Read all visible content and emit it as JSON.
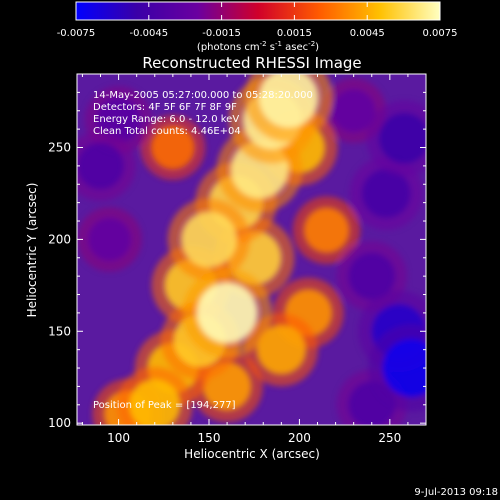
{
  "chart_data": {
    "type": "heatmap",
    "title": "Reconstructed RHESSI Image",
    "xlabel": "Heliocentric X (arcsec)",
    "ylabel": "Heliocentric Y (arcsec)",
    "xlim": [
      77,
      270
    ],
    "ylim": [
      99,
      290
    ],
    "x_ticks": [
      100,
      150,
      200,
      250
    ],
    "y_ticks": [
      100,
      150,
      200,
      250
    ],
    "annotations": [
      "14-May-2005 05:27:00.000 to 05:28:20.000",
      "Detectors: 4F 5F 6F 7F 8F 9F",
      "Energy Range: 6.0 - 12.0 keV",
      "Clean    Total counts: 4.46E+04"
    ],
    "peak_label": "Position of Peak = [194,277]",
    "colorbar": {
      "range": [
        -0.0075,
        0.0075
      ],
      "ticks": [
        "-0.0075",
        "-0.0045",
        "-0.0015",
        "0.0015",
        "0.0045",
        "0.0075"
      ],
      "unit_text": "(photons cm",
      "unit_exp1": "-2",
      "unit_mid": " s",
      "unit_exp2": "-1",
      "unit_mid2": " asec",
      "unit_exp3": "-2",
      "unit_end": ")",
      "colors": [
        "#0000ff",
        "#3a00a8",
        "#6a00a0",
        "#d0002a",
        "#ff5a00",
        "#ffc000",
        "#ffffc0"
      ]
    },
    "blobs": [
      {
        "x": 160,
        "y": 160,
        "v": 0.0075
      },
      {
        "x": 178,
        "y": 238,
        "v": 0.0068
      },
      {
        "x": 185,
        "y": 265,
        "v": 0.007
      },
      {
        "x": 194,
        "y": 277,
        "v": 0.0072
      },
      {
        "x": 150,
        "y": 200,
        "v": 0.0062
      },
      {
        "x": 165,
        "y": 220,
        "v": 0.006
      },
      {
        "x": 140,
        "y": 175,
        "v": 0.0055
      },
      {
        "x": 175,
        "y": 190,
        "v": 0.0058
      },
      {
        "x": 130,
        "y": 130,
        "v": 0.005
      },
      {
        "x": 145,
        "y": 145,
        "v": 0.0055
      },
      {
        "x": 120,
        "y": 110,
        "v": 0.005
      },
      {
        "x": 105,
        "y": 105,
        "v": 0.004
      },
      {
        "x": 200,
        "y": 250,
        "v": 0.005
      },
      {
        "x": 205,
        "y": 160,
        "v": 0.004
      },
      {
        "x": 190,
        "y": 140,
        "v": 0.0045
      },
      {
        "x": 160,
        "y": 120,
        "v": 0.0042
      },
      {
        "x": 215,
        "y": 205,
        "v": 0.0035
      },
      {
        "x": 130,
        "y": 250,
        "v": 0.003
      },
      {
        "x": 255,
        "y": 150,
        "v": -0.006
      },
      {
        "x": 262,
        "y": 130,
        "v": -0.007
      },
      {
        "x": 240,
        "y": 180,
        "v": -0.004
      },
      {
        "x": 248,
        "y": 225,
        "v": -0.0045
      },
      {
        "x": 258,
        "y": 255,
        "v": -0.005
      },
      {
        "x": 240,
        "y": 110,
        "v": -0.004
      },
      {
        "x": 90,
        "y": 240,
        "v": -0.004
      },
      {
        "x": 95,
        "y": 200,
        "v": -0.003
      },
      {
        "x": 100,
        "y": 265,
        "v": -0.0035
      },
      {
        "x": 230,
        "y": 270,
        "v": -0.003
      }
    ]
  },
  "footer": {
    "date": "9-Jul-2013 09:18"
  }
}
